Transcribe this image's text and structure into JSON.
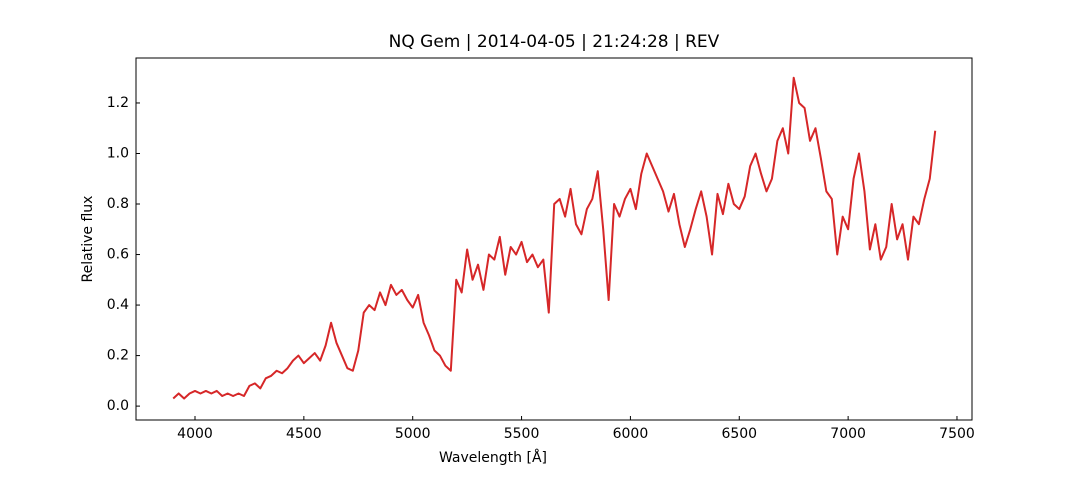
{
  "chart_data": {
    "type": "line",
    "title": "NQ Gem | 2014-04-05 | 21:24:28 | REV",
    "xlabel": "Wavelength [Å]",
    "ylabel": "Relative flux",
    "color": "#d62728",
    "xlim": [
      3729,
      7569
    ],
    "ylim": [
      -0.055,
      1.378
    ],
    "xticks": [
      4000,
      4500,
      5000,
      5500,
      6000,
      6500,
      7000,
      7500
    ],
    "yticks": [
      {
        "value": 0,
        "label": "0.0"
      },
      0.2,
      0.4,
      0.6,
      0.8,
      {
        "value": 1,
        "label": "1.0"
      },
      1.2
    ],
    "x": [
      3900,
      3925,
      3950,
      3975,
      4000,
      4025,
      4050,
      4075,
      4100,
      4125,
      4150,
      4175,
      4200,
      4225,
      4250,
      4275,
      4300,
      4325,
      4350,
      4375,
      4400,
      4425,
      4450,
      4475,
      4500,
      4525,
      4550,
      4575,
      4600,
      4625,
      4650,
      4675,
      4700,
      4725,
      4750,
      4775,
      4800,
      4825,
      4850,
      4875,
      4900,
      4925,
      4950,
      4975,
      5000,
      5025,
      5050,
      5075,
      5100,
      5125,
      5150,
      5175,
      5200,
      5225,
      5250,
      5275,
      5300,
      5325,
      5350,
      5375,
      5400,
      5425,
      5450,
      5475,
      5500,
      5525,
      5550,
      5575,
      5600,
      5625,
      5650,
      5675,
      5700,
      5725,
      5750,
      5775,
      5800,
      5825,
      5850,
      5875,
      5900,
      5925,
      5950,
      5975,
      6000,
      6025,
      6050,
      6075,
      6100,
      6125,
      6150,
      6175,
      6200,
      6225,
      6250,
      6275,
      6300,
      6325,
      6350,
      6375,
      6400,
      6425,
      6450,
      6475,
      6500,
      6525,
      6550,
      6575,
      6600,
      6625,
      6650,
      6675,
      6700,
      6725,
      6750,
      6775,
      6800,
      6825,
      6850,
      6875,
      6900,
      6925,
      6950,
      6975,
      7000,
      7025,
      7050,
      7075,
      7100,
      7125,
      7150,
      7175,
      7200,
      7225,
      7250,
      7275,
      7300,
      7325,
      7350,
      7375,
      7400
    ],
    "values": [
      0.03,
      0.05,
      0.03,
      0.05,
      0.06,
      0.05,
      0.06,
      0.05,
      0.06,
      0.04,
      0.05,
      0.04,
      0.05,
      0.04,
      0.08,
      0.09,
      0.07,
      0.11,
      0.12,
      0.14,
      0.13,
      0.15,
      0.18,
      0.2,
      0.17,
      0.19,
      0.21,
      0.18,
      0.24,
      0.33,
      0.25,
      0.2,
      0.15,
      0.14,
      0.22,
      0.37,
      0.4,
      0.38,
      0.45,
      0.4,
      0.48,
      0.44,
      0.46,
      0.42,
      0.39,
      0.44,
      0.33,
      0.28,
      0.22,
      0.2,
      0.16,
      0.14,
      0.5,
      0.45,
      0.62,
      0.5,
      0.56,
      0.46,
      0.6,
      0.58,
      0.67,
      0.52,
      0.63,
      0.6,
      0.65,
      0.57,
      0.6,
      0.55,
      0.58,
      0.37,
      0.8,
      0.82,
      0.75,
      0.86,
      0.72,
      0.68,
      0.78,
      0.82,
      0.93,
      0.7,
      0.42,
      0.8,
      0.75,
      0.82,
      0.86,
      0.78,
      0.92,
      1.0,
      0.95,
      0.9,
      0.85,
      0.77,
      0.84,
      0.72,
      0.63,
      0.7,
      0.78,
      0.85,
      0.75,
      0.6,
      0.84,
      0.76,
      0.88,
      0.8,
      0.78,
      0.83,
      0.95,
      1.0,
      0.92,
      0.85,
      0.9,
      1.05,
      1.1,
      1.0,
      1.3,
      1.2,
      1.18,
      1.05,
      1.1,
      0.98,
      0.85,
      0.82,
      0.6,
      0.75,
      0.7,
      0.9,
      1.0,
      0.85,
      0.62,
      0.72,
      0.58,
      0.63,
      0.8,
      0.66,
      0.72,
      0.58,
      0.75,
      0.72,
      0.82,
      0.9,
      1.09
    ]
  }
}
